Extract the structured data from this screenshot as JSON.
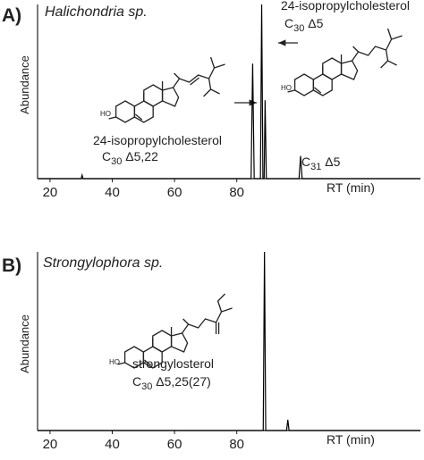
{
  "chart_data": [
    {
      "type": "line",
      "panel_label": "A)",
      "title": "Halichondria sp.",
      "y_label": "Abundance",
      "x_label": "RT (min)",
      "xlim": [
        16,
        139
      ],
      "xticks": [
        20,
        40,
        60,
        80
      ],
      "ylim": [
        0,
        100
      ],
      "x": [
        16,
        30,
        30.3,
        30.6,
        84.6,
        85.1,
        85.6,
        87.6,
        88,
        88.4,
        88.8,
        89.1,
        89.5,
        100,
        100.5,
        101,
        139
      ],
      "series": [
        {
          "color": "#000000",
          "values": [
            0,
            0,
            2,
            0,
            0,
            66,
            0,
            0,
            100,
            0,
            0,
            45,
            0,
            0,
            13,
            0,
            0
          ]
        }
      ],
      "annotations": [
        {
          "text": "24-isopropylcholesterol"
        },
        {
          "text": "C",
          "sub": "30",
          "tail": " Δ5,22"
        },
        {
          "text": "24-isopropylcholesterol"
        },
        {
          "text": "C",
          "sub": "30",
          "tail": " Δ5"
        },
        {
          "text": "C",
          "sub": "31",
          "tail": " Δ5"
        },
        {
          "text": "HO"
        },
        {
          "text": "HO"
        }
      ]
    },
    {
      "type": "line",
      "panel_label": "B)",
      "title": "Strongylophora sp.",
      "y_label": "Abundance",
      "x_label": "RT (min)",
      "xlim": [
        16,
        139
      ],
      "xticks": [
        20,
        40,
        60,
        80
      ],
      "ylim": [
        0,
        100
      ],
      "x": [
        16,
        88.5,
        88.9,
        89.3,
        96,
        96.4,
        96.8,
        139
      ],
      "series": [
        {
          "color": "#000000",
          "values": [
            0,
            0,
            100,
            0,
            0,
            6,
            0,
            0
          ]
        }
      ],
      "annotations": [
        {
          "text": "strongylosterol"
        },
        {
          "text": "C",
          "sub": "30",
          "tail": " Δ5,25(27)"
        },
        {
          "text": "HO"
        }
      ]
    }
  ]
}
